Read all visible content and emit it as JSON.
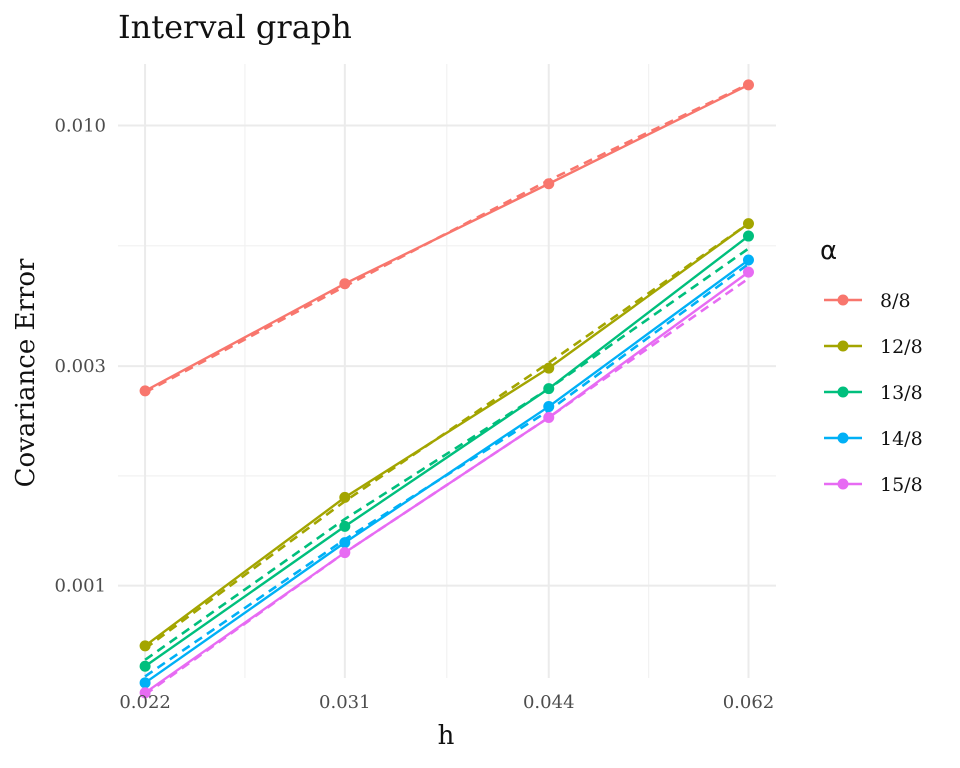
{
  "chart_data": {
    "type": "line",
    "title": "Interval graph",
    "xlabel": "h",
    "ylabel": "Covariance Error",
    "x_scale": "log",
    "y_scale": "log",
    "x": [
      0.022,
      0.031,
      0.044,
      0.062
    ],
    "x_tick_labels": [
      "0.022",
      "0.031",
      "0.044",
      "0.062"
    ],
    "y_ticks": [
      0.001,
      0.003,
      0.01
    ],
    "y_tick_labels": [
      "0.001",
      "0.003",
      "0.010"
    ],
    "xlim": [
      0.021,
      0.065
    ],
    "ylim": [
      0.00063,
      0.0136
    ],
    "grid": true,
    "legend_title": "α",
    "legend_position": "right",
    "series": [
      {
        "name": "8/8",
        "color": "#F8766D",
        "values": [
          0.00265,
          0.00453,
          0.00747,
          0.01225
        ],
        "fit": [
          0.00263,
          0.00447,
          0.0076,
          0.0123
        ]
      },
      {
        "name": "12/8",
        "color": "#A3A500",
        "values": [
          0.00074,
          0.001555,
          0.00297,
          0.00612
        ],
        "fit": [
          0.00073,
          0.001525,
          0.00305,
          0.00612
        ]
      },
      {
        "name": "13/8",
        "color": "#00BF7D",
        "values": [
          0.000668,
          0.001345,
          0.00268,
          0.00575
        ],
        "fit": [
          0.00069,
          0.001395,
          0.00268,
          0.0054
        ]
      },
      {
        "name": "14/8",
        "color": "#00B0F6",
        "values": [
          0.000615,
          0.00124,
          0.00245,
          0.0051
        ],
        "fit": [
          0.000635,
          0.00126,
          0.0024,
          0.005
        ]
      },
      {
        "name": "15/8",
        "color": "#E76BF3",
        "values": [
          0.000585,
          0.00118,
          0.00232,
          0.0048
        ],
        "fit": [
          0.00058,
          0.00118,
          0.00232,
          0.00465
        ]
      }
    ]
  }
}
